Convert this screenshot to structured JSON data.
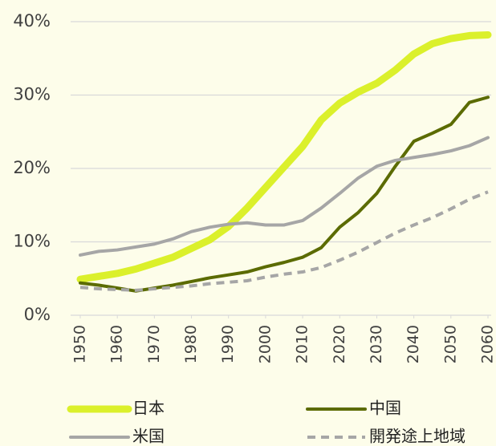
{
  "chart_data": {
    "type": "line",
    "x": [
      1950,
      1955,
      1960,
      1965,
      1970,
      1975,
      1980,
      1985,
      1990,
      1995,
      2000,
      2005,
      2010,
      2015,
      2020,
      2025,
      2030,
      2035,
      2040,
      2045,
      2050,
      2055,
      2060
    ],
    "series": [
      {
        "name": "日本",
        "color": "#dbf02b",
        "values": [
          4.9,
          5.3,
          5.7,
          6.3,
          7.1,
          7.9,
          9.1,
          10.3,
          12.1,
          14.6,
          17.4,
          20.2,
          23.0,
          26.6,
          28.9,
          30.4,
          31.6,
          33.4,
          35.6,
          37.0,
          37.7,
          38.1,
          38.2
        ]
      },
      {
        "name": "中国",
        "color": "#5b6b00",
        "values": [
          4.4,
          4.1,
          3.7,
          3.3,
          3.7,
          4.1,
          4.6,
          5.1,
          5.5,
          5.9,
          6.6,
          7.2,
          7.9,
          9.2,
          12.0,
          14.0,
          16.6,
          20.3,
          23.7,
          24.8,
          26.0,
          29.0,
          29.7
        ]
      },
      {
        "name": "米国",
        "color": "#a6a6a6",
        "values": [
          8.2,
          8.7,
          8.9,
          9.3,
          9.7,
          10.4,
          11.4,
          12.0,
          12.4,
          12.6,
          12.3,
          12.3,
          12.9,
          14.6,
          16.6,
          18.7,
          20.3,
          21.1,
          21.5,
          21.9,
          22.4,
          23.1,
          24.2
        ]
      },
      {
        "name": "開発途上地域",
        "color": "#a6a6a6",
        "dashed": true,
        "values": [
          3.8,
          3.6,
          3.5,
          3.4,
          3.6,
          3.8,
          4.0,
          4.3,
          4.5,
          4.7,
          5.2,
          5.6,
          5.9,
          6.5,
          7.5,
          8.6,
          9.9,
          11.2,
          12.3,
          13.3,
          14.5,
          15.8,
          16.8
        ]
      }
    ],
    "xlim": [
      1950,
      2060
    ],
    "xticks": [
      1950,
      1960,
      1970,
      1980,
      1990,
      2000,
      2010,
      2020,
      2030,
      2040,
      2050,
      2060
    ],
    "ylim": [
      0,
      40
    ],
    "yticks": [
      {
        "value": 0,
        "label": "0%"
      },
      {
        "value": 10,
        "label": "10%"
      },
      {
        "value": 20,
        "label": "20%"
      },
      {
        "value": 30,
        "label": "30%"
      },
      {
        "value": 40,
        "label": "40%"
      }
    ],
    "grid": true,
    "legend": "bottom"
  }
}
